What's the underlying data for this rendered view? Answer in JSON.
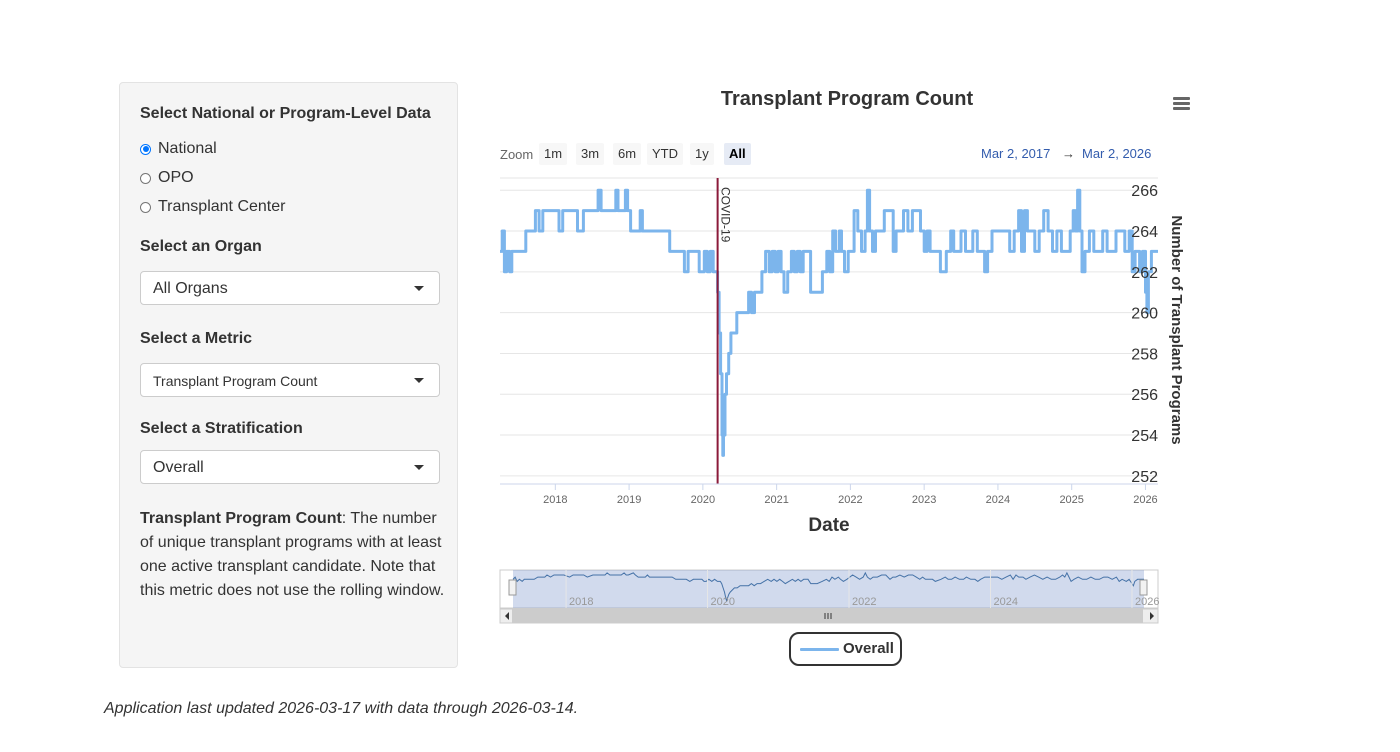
{
  "sidebar": {
    "level_heading": "Select National or Program-Level Data",
    "level_options": [
      "National",
      "OPO",
      "Transplant Center"
    ],
    "level_selected": "National",
    "organ_heading": "Select an Organ",
    "organ_value": "All Organs",
    "metric_heading": "Select a Metric",
    "metric_value": "Transplant Program Count",
    "strat_heading": "Select a Stratification",
    "strat_value": "Overall",
    "description_term": "Transplant Program Count",
    "description_text": ": The number of unique transplant programs with at least one active transplant candidate. Note that this metric does not use the rolling window."
  },
  "chart_controls": {
    "zoom_label": "Zoom",
    "zoom_buttons": [
      "1m",
      "3m",
      "6m",
      "YTD",
      "1y",
      "All"
    ],
    "zoom_selected": "All",
    "range_from": "Mar 2, 2017",
    "range_arrow": "→",
    "range_to": "Mar 2, 2026",
    "menu_icon": "hamburger-menu-icon"
  },
  "chart_data": {
    "type": "line",
    "title": "Transplant Program Count",
    "xlabel": "Date",
    "ylabel": "Number of Transplant Programs",
    "x_range": [
      2017.25,
      2026.17
    ],
    "ylim": [
      251.6,
      266.6
    ],
    "y_ticks": [
      252,
      254,
      256,
      258,
      260,
      262,
      264,
      266
    ],
    "x_ticks": [
      "2018",
      "2019",
      "2020",
      "2021",
      "2022",
      "2023",
      "2024",
      "2025",
      "2026"
    ],
    "x_tick_values": [
      2018,
      2019,
      2020,
      2021,
      2022,
      2023,
      2024,
      2025,
      2026
    ],
    "line_color": "#7cb5ec",
    "plot_line": {
      "label": "COVID-19",
      "x": 2020.2,
      "color": "#8b1a3a"
    },
    "navigator_ticks": [
      "2018",
      "2020",
      "2022",
      "2024",
      "2026"
    ],
    "navigator_tick_values": [
      2018,
      2020,
      2022,
      2024,
      2026
    ],
    "series": [
      {
        "name": "Overall",
        "points": [
          [
            2017.25,
            263
          ],
          [
            2017.28,
            264
          ],
          [
            2017.31,
            262
          ],
          [
            2017.34,
            263
          ],
          [
            2017.38,
            262
          ],
          [
            2017.41,
            263
          ],
          [
            2017.46,
            263
          ],
          [
            2017.5,
            263
          ],
          [
            2017.55,
            263
          ],
          [
            2017.6,
            264
          ],
          [
            2017.65,
            264
          ],
          [
            2017.7,
            264
          ],
          [
            2017.73,
            265
          ],
          [
            2017.78,
            264
          ],
          [
            2017.83,
            265
          ],
          [
            2017.9,
            265
          ],
          [
            2017.97,
            265
          ],
          [
            2018.05,
            264
          ],
          [
            2018.1,
            265
          ],
          [
            2018.18,
            265
          ],
          [
            2018.25,
            265
          ],
          [
            2018.3,
            264
          ],
          [
            2018.38,
            265
          ],
          [
            2018.48,
            265
          ],
          [
            2018.55,
            265
          ],
          [
            2018.58,
            266
          ],
          [
            2018.62,
            265
          ],
          [
            2018.66,
            265
          ],
          [
            2018.72,
            265
          ],
          [
            2018.78,
            265
          ],
          [
            2018.82,
            266
          ],
          [
            2018.85,
            265
          ],
          [
            2018.88,
            265
          ],
          [
            2018.95,
            266
          ],
          [
            2018.98,
            265
          ],
          [
            2019.02,
            264
          ],
          [
            2019.08,
            264
          ],
          [
            2019.12,
            264
          ],
          [
            2019.15,
            265
          ],
          [
            2019.18,
            264
          ],
          [
            2019.24,
            264
          ],
          [
            2019.28,
            264
          ],
          [
            2019.34,
            264
          ],
          [
            2019.4,
            264
          ],
          [
            2019.45,
            264
          ],
          [
            2019.5,
            264
          ],
          [
            2019.55,
            263
          ],
          [
            2019.6,
            263
          ],
          [
            2019.7,
            263
          ],
          [
            2019.75,
            262
          ],
          [
            2019.8,
            263
          ],
          [
            2019.86,
            263
          ],
          [
            2019.92,
            263
          ],
          [
            2019.95,
            262
          ],
          [
            2019.98,
            262
          ],
          [
            2020.02,
            263
          ],
          [
            2020.06,
            262
          ],
          [
            2020.1,
            263
          ],
          [
            2020.14,
            262
          ],
          [
            2020.18,
            262
          ],
          [
            2020.2,
            261
          ],
          [
            2020.22,
            259
          ],
          [
            2020.24,
            257
          ],
          [
            2020.26,
            254
          ],
          [
            2020.27,
            253
          ],
          [
            2020.28,
            254
          ],
          [
            2020.3,
            256
          ],
          [
            2020.32,
            257
          ],
          [
            2020.35,
            258
          ],
          [
            2020.38,
            259
          ],
          [
            2020.42,
            259
          ],
          [
            2020.46,
            260
          ],
          [
            2020.52,
            260
          ],
          [
            2020.58,
            260
          ],
          [
            2020.62,
            261
          ],
          [
            2020.66,
            260
          ],
          [
            2020.7,
            261
          ],
          [
            2020.75,
            261
          ],
          [
            2020.8,
            262
          ],
          [
            2020.85,
            263
          ],
          [
            2020.9,
            262
          ],
          [
            2020.94,
            263
          ],
          [
            2020.98,
            262
          ],
          [
            2021.02,
            263
          ],
          [
            2021.06,
            262
          ],
          [
            2021.1,
            261
          ],
          [
            2021.15,
            262
          ],
          [
            2021.2,
            263
          ],
          [
            2021.24,
            262
          ],
          [
            2021.28,
            263
          ],
          [
            2021.32,
            262
          ],
          [
            2021.36,
            263
          ],
          [
            2021.42,
            263
          ],
          [
            2021.46,
            261
          ],
          [
            2021.55,
            261
          ],
          [
            2021.62,
            262
          ],
          [
            2021.68,
            263
          ],
          [
            2021.72,
            262
          ],
          [
            2021.76,
            264
          ],
          [
            2021.8,
            263
          ],
          [
            2021.85,
            264
          ],
          [
            2021.88,
            263
          ],
          [
            2021.92,
            262
          ],
          [
            2021.97,
            263
          ],
          [
            2022.05,
            265
          ],
          [
            2022.1,
            264
          ],
          [
            2022.15,
            263
          ],
          [
            2022.2,
            264
          ],
          [
            2022.23,
            266
          ],
          [
            2022.26,
            264
          ],
          [
            2022.3,
            263
          ],
          [
            2022.34,
            264
          ],
          [
            2022.4,
            264
          ],
          [
            2022.46,
            265
          ],
          [
            2022.52,
            265
          ],
          [
            2022.58,
            263
          ],
          [
            2022.62,
            264
          ],
          [
            2022.66,
            264
          ],
          [
            2022.72,
            265
          ],
          [
            2022.78,
            264
          ],
          [
            2022.84,
            265
          ],
          [
            2022.9,
            265
          ],
          [
            2022.95,
            264
          ],
          [
            2023.0,
            263
          ],
          [
            2023.04,
            264
          ],
          [
            2023.08,
            263
          ],
          [
            2023.12,
            263
          ],
          [
            2023.18,
            263
          ],
          [
            2023.22,
            262
          ],
          [
            2023.3,
            263
          ],
          [
            2023.36,
            264
          ],
          [
            2023.4,
            263
          ],
          [
            2023.45,
            263
          ],
          [
            2023.5,
            264
          ],
          [
            2023.56,
            263
          ],
          [
            2023.62,
            263
          ],
          [
            2023.66,
            264
          ],
          [
            2023.72,
            263
          ],
          [
            2023.78,
            263
          ],
          [
            2023.82,
            262
          ],
          [
            2023.86,
            263
          ],
          [
            2023.92,
            264
          ],
          [
            2023.98,
            264
          ],
          [
            2024.04,
            264
          ],
          [
            2024.1,
            264
          ],
          [
            2024.16,
            263
          ],
          [
            2024.22,
            264
          ],
          [
            2024.28,
            265
          ],
          [
            2024.32,
            263
          ],
          [
            2024.36,
            265
          ],
          [
            2024.4,
            264
          ],
          [
            2024.46,
            264
          ],
          [
            2024.5,
            263
          ],
          [
            2024.56,
            264
          ],
          [
            2024.62,
            265
          ],
          [
            2024.68,
            264
          ],
          [
            2024.74,
            263
          ],
          [
            2024.8,
            264
          ],
          [
            2024.86,
            263
          ],
          [
            2024.92,
            263
          ],
          [
            2024.98,
            264
          ],
          [
            2025.02,
            265
          ],
          [
            2025.05,
            264
          ],
          [
            2025.08,
            266
          ],
          [
            2025.11,
            264
          ],
          [
            2025.14,
            262
          ],
          [
            2025.18,
            263
          ],
          [
            2025.24,
            264
          ],
          [
            2025.3,
            263
          ],
          [
            2025.36,
            263
          ],
          [
            2025.42,
            264
          ],
          [
            2025.48,
            263
          ],
          [
            2025.54,
            263
          ],
          [
            2025.6,
            264
          ],
          [
            2025.66,
            264
          ],
          [
            2025.72,
            263
          ],
          [
            2025.78,
            264
          ],
          [
            2025.82,
            262
          ],
          [
            2025.86,
            263
          ],
          [
            2025.92,
            262
          ],
          [
            2025.96,
            263
          ],
          [
            2026.0,
            261
          ],
          [
            2026.02,
            260
          ],
          [
            2026.04,
            262
          ],
          [
            2026.08,
            263
          ],
          [
            2026.17,
            263
          ]
        ]
      }
    ]
  },
  "legend": {
    "label": "Overall"
  },
  "footer": {
    "text": "Application last updated 2026-03-17 with data through 2026-03-14."
  }
}
